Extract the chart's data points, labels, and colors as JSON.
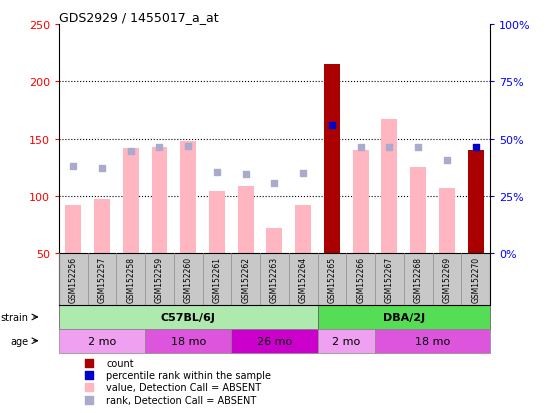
{
  "title": "GDS2929 / 1455017_a_at",
  "samples": [
    "GSM152256",
    "GSM152257",
    "GSM152258",
    "GSM152259",
    "GSM152260",
    "GSM152261",
    "GSM152262",
    "GSM152263",
    "GSM152264",
    "GSM152265",
    "GSM152266",
    "GSM152267",
    "GSM152268",
    "GSM152269",
    "GSM152270"
  ],
  "count_values": [
    null,
    null,
    null,
    null,
    null,
    null,
    null,
    null,
    null,
    215,
    null,
    null,
    null,
    null,
    140
  ],
  "count_absent": [
    92,
    97,
    142,
    143,
    148,
    104,
    109,
    72,
    92,
    null,
    140,
    167,
    125,
    107,
    null
  ],
  "rank_present": [
    null,
    null,
    null,
    null,
    null,
    null,
    null,
    null,
    null,
    162,
    null,
    null,
    null,
    null,
    143
  ],
  "rank_absent": [
    126,
    124,
    139,
    143,
    144,
    121,
    119,
    111,
    120,
    null,
    143,
    143,
    143,
    131,
    null
  ],
  "ylim_left": [
    50,
    250
  ],
  "ylim_right": [
    0,
    100
  ],
  "yticks_left": [
    50,
    100,
    150,
    200,
    250
  ],
  "yticks_right": [
    0,
    25,
    50,
    75,
    100
  ],
  "yticklabels_right": [
    "0%",
    "25%",
    "50%",
    "75%",
    "100%"
  ],
  "strain_groups": [
    {
      "label": "C57BL/6J",
      "start": 0,
      "end": 9,
      "color": "#aeeaae"
    },
    {
      "label": "DBA/2J",
      "start": 9,
      "end": 15,
      "color": "#55dd55"
    }
  ],
  "age_groups": [
    {
      "label": "2 mo",
      "start": 0,
      "end": 3,
      "color": "#f0a0f0"
    },
    {
      "label": "18 mo",
      "start": 3,
      "end": 6,
      "color": "#dd55dd"
    },
    {
      "label": "26 mo",
      "start": 6,
      "end": 9,
      "color": "#cc00cc"
    },
    {
      "label": "2 mo",
      "start": 9,
      "end": 11,
      "color": "#f0a0f0"
    },
    {
      "label": "18 mo",
      "start": 11,
      "end": 15,
      "color": "#dd55dd"
    }
  ],
  "color_count_present": "#aa0000",
  "color_count_absent": "#ffb6c1",
  "color_rank_present": "#0000cc",
  "color_rank_absent": "#aaaacc",
  "bar_width": 0.55,
  "label_area_color": "#c8c8c8",
  "label_area_color2": "#d8d8d8",
  "bg_color": "#ffffff"
}
